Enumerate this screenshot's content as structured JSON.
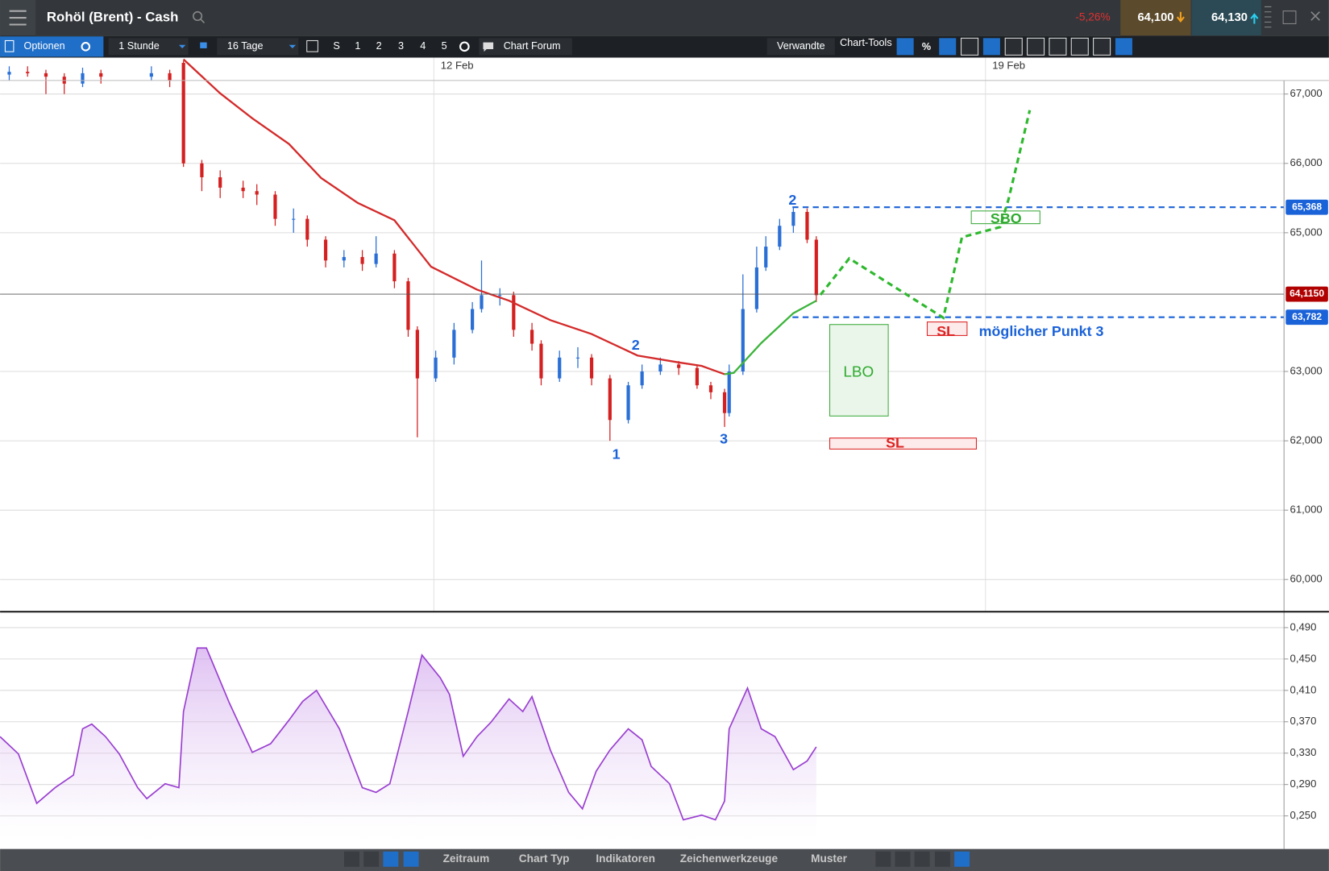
{
  "header": {
    "title": "Rohöl (Brent) - Cash",
    "change": "-5,26%",
    "sell": "64,100",
    "buy": "64,130"
  },
  "toolbar": {
    "options": "Optionen",
    "interval": "1 Stunde",
    "range": "16 Tage",
    "buttons": [
      "S",
      "1",
      "2",
      "3",
      "4",
      "5"
    ],
    "forum": "Chart Forum",
    "related": "Verwandte",
    "tools": "Chart-Tools",
    "percent": "%"
  },
  "footer": {
    "tabs": [
      "Zeitraum",
      "Chart Typ",
      "Indikatoren",
      "Zeichenwerkzeuge",
      "Muster"
    ]
  },
  "annotations": [
    "2",
    "2",
    "1",
    "3",
    "LBO",
    "SL",
    "SL",
    "SBO",
    "möglicher Punkt 3"
  ],
  "chart_data": [
    {
      "type": "candlestick",
      "x": [
        2,
        6,
        10,
        14,
        18,
        22,
        33,
        37,
        40,
        44,
        48,
        53,
        56,
        60,
        64,
        67,
        71,
        75,
        79,
        82,
        86,
        89,
        91,
        95,
        99,
        103,
        105,
        109,
        112,
        116,
        118,
        122,
        126,
        129,
        133,
        137,
        140,
        144,
        148,
        152,
        155,
        158,
        159,
        162,
        165,
        167,
        170,
        173,
        176,
        178
      ],
      "open": [
        67.28,
        67.32,
        67.3,
        67.25,
        67.15,
        67.3,
        67.25,
        67.3,
        67.45,
        66.0,
        65.8,
        65.65,
        65.6,
        65.55,
        65.2,
        65.2,
        64.9,
        64.6,
        64.65,
        64.55,
        64.7,
        64.3,
        63.6,
        62.9,
        63.2,
        63.6,
        63.9,
        64.1,
        64.1,
        63.6,
        63.4,
        62.9,
        63.2,
        63.2,
        62.9,
        62.3,
        62.8,
        63.0,
        63.1,
        63.05,
        62.8,
        62.7,
        62.4,
        63.0,
        63.9,
        64.5,
        64.8,
        65.1,
        65.3,
        64.9
      ],
      "high": [
        67.4,
        67.4,
        67.35,
        67.3,
        67.38,
        67.35,
        67.4,
        67.35,
        67.48,
        66.05,
        65.9,
        65.75,
        65.7,
        65.6,
        65.35,
        65.25,
        64.95,
        64.75,
        64.75,
        64.95,
        64.75,
        64.35,
        63.65,
        63.3,
        63.7,
        64.0,
        64.6,
        64.2,
        64.15,
        63.7,
        63.45,
        63.3,
        63.35,
        63.25,
        62.95,
        62.85,
        63.1,
        63.2,
        63.15,
        63.1,
        62.85,
        62.75,
        63.1,
        64.4,
        64.8,
        64.95,
        65.2,
        65.37,
        65.35,
        64.95
      ],
      "low": [
        67.2,
        67.25,
        67.0,
        67.0,
        67.1,
        67.15,
        67.2,
        67.1,
        65.95,
        65.6,
        65.5,
        65.5,
        65.4,
        65.1,
        65.0,
        64.8,
        64.5,
        64.5,
        64.45,
        64.5,
        64.2,
        63.5,
        62.05,
        62.85,
        63.1,
        63.55,
        63.85,
        63.95,
        63.5,
        63.3,
        62.8,
        62.85,
        63.05,
        62.8,
        62.0,
        62.25,
        62.75,
        62.95,
        62.95,
        62.75,
        62.6,
        62.2,
        62.35,
        62.95,
        63.85,
        64.45,
        64.75,
        65.0,
        64.85,
        64.0
      ],
      "close": [
        67.32,
        67.3,
        67.25,
        67.15,
        67.3,
        67.25,
        67.3,
        67.2,
        66.0,
        65.8,
        65.65,
        65.6,
        65.55,
        65.2,
        65.2,
        64.9,
        64.6,
        64.65,
        64.55,
        64.7,
        64.3,
        63.6,
        62.9,
        63.2,
        63.6,
        63.9,
        64.1,
        64.1,
        63.6,
        63.4,
        62.9,
        63.2,
        63.2,
        62.9,
        62.3,
        62.8,
        63.0,
        63.1,
        63.05,
        62.8,
        62.7,
        62.4,
        63.0,
        63.9,
        64.5,
        64.8,
        65.1,
        65.3,
        64.9,
        64.1
      ],
      "up_color": "#2a6fd6",
      "down_color": "#d42020",
      "xlim": [
        0,
        280
      ],
      "xticks": [
        {
          "value": 94.6,
          "label": "12 Feb"
        },
        {
          "value": 214.9,
          "label": "19 Feb"
        }
      ],
      "ylim": [
        59.56,
        67.525
      ],
      "yticks": [
        {
          "value": 67,
          "label": "67,000"
        },
        {
          "value": 66,
          "label": "66,000"
        },
        {
          "value": 65,
          "label": "65,000"
        },
        {
          "value": 63,
          "label": "63,000"
        },
        {
          "value": 62,
          "label": "62,000"
        },
        {
          "value": 61,
          "label": "61,000"
        },
        {
          "value": 60,
          "label": "60,000"
        }
      ],
      "grid": true,
      "series": [
        {
          "color": "#d42a2a",
          "x": [
            40,
            48,
            55,
            63,
            70,
            78,
            86,
            94,
            104,
            111,
            120,
            129,
            139,
            148,
            153,
            158
          ],
          "values": [
            67.5,
            67.01,
            66.65,
            66.28,
            65.79,
            65.43,
            65.18,
            64.51,
            64.18,
            64.02,
            63.74,
            63.54,
            63.23,
            63.13,
            63.08,
            62.96
          ]
        },
        {
          "color": "#3cb43c",
          "x": [
            158,
            160,
            166,
            173,
            178
          ],
          "values": [
            62.96,
            62.98,
            63.41,
            63.84,
            64.02
          ]
        }
      ],
      "levels": [
        {
          "value": 64.115,
          "label": "64,1150",
          "color": "#b00000",
          "dashed": false
        },
        {
          "value": 65.368,
          "label": "65,368",
          "color": "#1a62d8",
          "dashed": true
        },
        {
          "value": 63.782,
          "label": "63,782",
          "color": "#1a62d8",
          "dashed": true
        }
      ]
    },
    {
      "type": "line",
      "x": [
        0,
        4,
        8,
        12,
        16,
        18,
        20,
        23,
        26,
        30,
        32,
        36,
        39,
        40,
        43,
        45,
        50,
        55,
        59,
        63,
        66,
        69,
        74,
        79,
        82,
        85,
        89,
        92,
        96,
        98,
        101,
        104,
        107,
        111,
        114,
        116,
        120,
        124,
        127,
        130,
        133,
        137,
        140,
        142,
        146,
        149,
        153,
        156,
        158,
        159,
        163,
        166,
        169,
        173,
        176,
        178
      ],
      "values": [
        0.351,
        0.329,
        0.266,
        0.286,
        0.302,
        0.361,
        0.367,
        0.351,
        0.329,
        0.286,
        0.272,
        0.291,
        0.286,
        0.383,
        0.464,
        0.464,
        0.394,
        0.331,
        0.342,
        0.372,
        0.396,
        0.41,
        0.361,
        0.286,
        0.28,
        0.291,
        0.383,
        0.455,
        0.426,
        0.405,
        0.326,
        0.351,
        0.369,
        0.399,
        0.383,
        0.402,
        0.334,
        0.28,
        0.259,
        0.307,
        0.334,
        0.361,
        0.347,
        0.313,
        0.291,
        0.245,
        0.251,
        0.245,
        0.269,
        0.361,
        0.413,
        0.361,
        0.351,
        0.309,
        0.32,
        0.338
      ],
      "color": "#9a3fd0",
      "xlim": [
        0,
        280
      ],
      "ylim": [
        0.21,
        0.507
      ],
      "yticks": [
        {
          "value": 0.49,
          "label": "0,490"
        },
        {
          "value": 0.45,
          "label": "0,450"
        },
        {
          "value": 0.41,
          "label": "0,410"
        },
        {
          "value": 0.37,
          "label": "0,370"
        },
        {
          "value": 0.33,
          "label": "0,330"
        },
        {
          "value": 0.29,
          "label": "0,290"
        },
        {
          "value": 0.25,
          "label": "0,250"
        }
      ],
      "grid": true
    }
  ]
}
